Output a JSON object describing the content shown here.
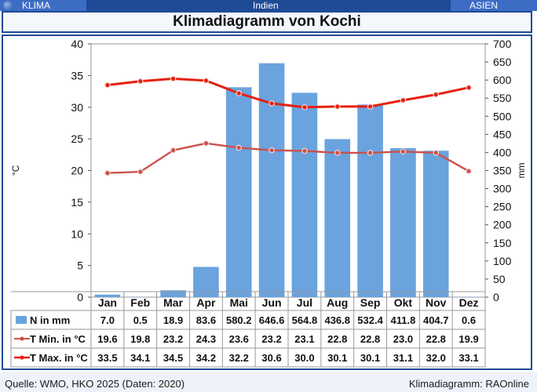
{
  "header": {
    "left_label": "KLIMA",
    "center_label": "Indien",
    "right_label": "ASIEN",
    "title": "Klimadiagramm von Kochi"
  },
  "footer": {
    "source": "Quelle: WMO, HKO 2025 (Daten: 2020)",
    "credit": "Klimadiagramm: RAOnline"
  },
  "colors": {
    "header_blue": "#1f4a96",
    "bar": "#6aa3de",
    "tmin": "#c9524c",
    "tmax": "#e8200f"
  },
  "chart_data": {
    "type": "bar",
    "categories": [
      "Jan",
      "Feb",
      "Mar",
      "Apr",
      "Mai",
      "Jun",
      "Jul",
      "Aug",
      "Sep",
      "Okt",
      "Nov",
      "Dez"
    ],
    "y_left": {
      "label": "°C",
      "min": 0,
      "max": 40,
      "ticks": [
        0,
        5,
        10,
        15,
        20,
        25,
        30,
        35,
        40
      ]
    },
    "y_right": {
      "label": "mm",
      "min": 0,
      "max": 700,
      "ticks": [
        0,
        50,
        100,
        150,
        200,
        250,
        300,
        350,
        400,
        450,
        500,
        550,
        600,
        650,
        700
      ]
    },
    "grid": false,
    "series": [
      {
        "name": "N in mm",
        "type": "bar",
        "axis": "right",
        "values": [
          7.0,
          0.5,
          18.9,
          83.6,
          580.2,
          646.6,
          564.8,
          436.8,
          532.4,
          411.8,
          404.7,
          0.6
        ],
        "labels": [
          "7.0",
          "0.5",
          "18.9",
          "83.6",
          "580.2",
          "646.6",
          "564.8",
          "436.8",
          "532.4",
          "411.8",
          "404.7",
          "0.6"
        ]
      },
      {
        "name": "T Min. in °C",
        "type": "line",
        "axis": "left",
        "values": [
          19.6,
          19.8,
          23.2,
          24.3,
          23.6,
          23.2,
          23.1,
          22.8,
          22.8,
          23.0,
          22.8,
          19.9
        ],
        "labels": [
          "19.6",
          "19.8",
          "23.2",
          "24.3",
          "23.6",
          "23.2",
          "23.1",
          "22.8",
          "22.8",
          "23.0",
          "22.8",
          "19.9"
        ]
      },
      {
        "name": "T Max. in °C",
        "type": "line",
        "axis": "left",
        "values": [
          33.5,
          34.1,
          34.5,
          34.2,
          32.2,
          30.6,
          30.0,
          30.1,
          30.1,
          31.1,
          32.0,
          33.1
        ],
        "labels": [
          "33.5",
          "34.1",
          "34.5",
          "34.2",
          "32.2",
          "30.6",
          "30.0",
          "30.1",
          "30.1",
          "31.1",
          "32.0",
          "33.1"
        ]
      }
    ]
  }
}
